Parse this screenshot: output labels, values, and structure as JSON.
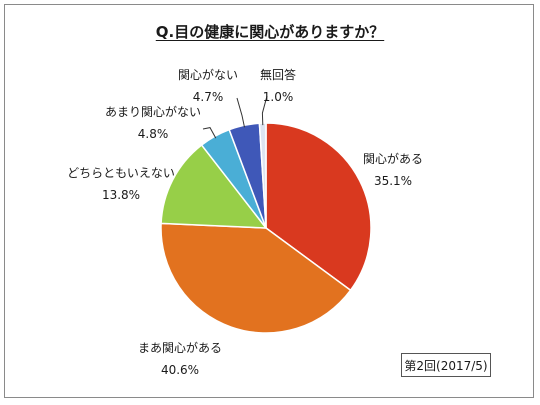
{
  "chart_data": {
    "type": "pie",
    "title": "Q.目の健康に関心がありますか？",
    "start": "12 o'clock, clockwise",
    "slices": [
      {
        "label": "関心がある",
        "value": 35.1,
        "value_label": "35.1%",
        "color": "#d9391f"
      },
      {
        "label": "まあ関心がある",
        "value": 40.6,
        "value_label": "40.6%",
        "color": "#e2721f"
      },
      {
        "label": "どちらともいえない",
        "value": 13.8,
        "value_label": "13.8%",
        "color": "#97cf48"
      },
      {
        "label": "あまり関心がない",
        "value": 4.8,
        "value_label": "4.8%",
        "color": "#4aaed6"
      },
      {
        "label": "関心がない",
        "value": 4.7,
        "value_label": "4.7%",
        "color": "#3f58b8"
      },
      {
        "label": "無回答",
        "value": 1.0,
        "value_label": "1.0%",
        "color": "#dde4f0"
      }
    ]
  },
  "note": "第2回(2017/5)"
}
